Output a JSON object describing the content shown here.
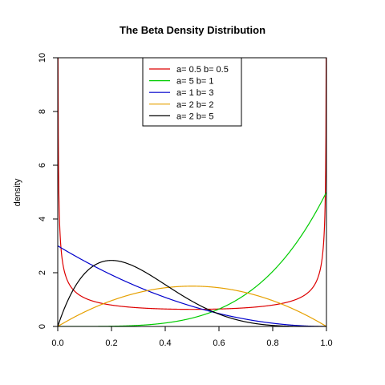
{
  "chart_data": {
    "type": "line",
    "title": "The Beta Density Distribution",
    "xlabel": "",
    "ylabel": "density",
    "xlim": [
      0,
      1
    ],
    "ylim": [
      0,
      10
    ],
    "x_ticks": [
      "0.0",
      "0.2",
      "0.4",
      "0.6",
      "0.8",
      "1.0"
    ],
    "y_ticks": [
      "0",
      "2",
      "4",
      "6",
      "8",
      "10"
    ],
    "grid": false,
    "legend_position": "top-center",
    "series": [
      {
        "name": "a= 0.5  b= 0.5",
        "a": 0.5,
        "b": 0.5,
        "color": "#dd0000",
        "x": [
          0.001,
          0.01,
          0.05,
          0.1,
          0.2,
          0.3,
          0.4,
          0.5,
          0.6,
          0.7,
          0.8,
          0.9,
          0.95,
          0.99,
          0.999
        ],
        "y": [
          10.07,
          3.2,
          1.46,
          1.06,
          0.8,
          0.69,
          0.65,
          0.64,
          0.65,
          0.69,
          0.8,
          1.06,
          1.46,
          3.2,
          10.07
        ]
      },
      {
        "name": "a= 5  b= 1",
        "a": 5,
        "b": 1,
        "color": "#00cc00",
        "x": [
          0.0,
          0.2,
          0.3,
          0.4,
          0.5,
          0.6,
          0.7,
          0.8,
          0.9,
          1.0
        ],
        "y": [
          0.0,
          0.01,
          0.04,
          0.13,
          0.31,
          0.65,
          1.2,
          2.05,
          3.28,
          5.0
        ]
      },
      {
        "name": "a= 1  b= 3",
        "a": 1,
        "b": 3,
        "color": "#0000cc",
        "x": [
          0.0,
          0.1,
          0.2,
          0.3,
          0.4,
          0.5,
          0.6,
          0.7,
          0.8,
          0.9,
          1.0
        ],
        "y": [
          3.0,
          2.43,
          1.92,
          1.47,
          1.08,
          0.75,
          0.48,
          0.27,
          0.12,
          0.03,
          0.0
        ]
      },
      {
        "name": "a= 2  b= 2",
        "a": 2,
        "b": 2,
        "color": "#e6a000",
        "x": [
          0.0,
          0.1,
          0.2,
          0.3,
          0.4,
          0.5,
          0.6,
          0.7,
          0.8,
          0.9,
          1.0
        ],
        "y": [
          0.0,
          0.54,
          0.96,
          1.26,
          1.44,
          1.5,
          1.44,
          1.26,
          0.96,
          0.54,
          0.0
        ]
      },
      {
        "name": "a= 2  b= 5",
        "a": 2,
        "b": 5,
        "color": "#000000",
        "x": [
          0.0,
          0.1,
          0.2,
          0.3,
          0.4,
          0.5,
          0.6,
          0.7,
          0.8,
          0.9,
          1.0
        ],
        "y": [
          0.0,
          1.97,
          2.46,
          2.16,
          1.56,
          0.94,
          0.46,
          0.16,
          0.04,
          0.0,
          0.0
        ]
      }
    ]
  }
}
